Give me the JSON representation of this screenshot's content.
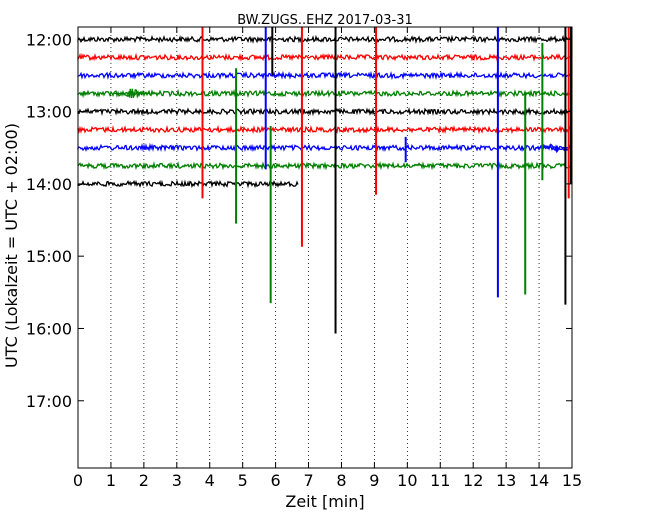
{
  "chart_data": {
    "type": "line",
    "title": "BW.ZUGS..EHZ 2017-03-31",
    "xlabel": "Zeit  [min]",
    "ylabel": "UTC (Lokalzeit = UTC + 02:00)",
    "xlim": [
      0,
      15
    ],
    "x_ticks": [
      "0",
      "1",
      "2",
      "3",
      "4",
      "5",
      "6",
      "7",
      "8",
      "9",
      "10",
      "11",
      "12",
      "13",
      "14",
      "15"
    ],
    "y_ticks": [
      "12:00",
      "13:00",
      "14:00",
      "15:00",
      "16:00",
      "17:00"
    ],
    "y_tick_hours": [
      12,
      13,
      14,
      15,
      16,
      17
    ],
    "ylim_hours": [
      11.83,
      17.93
    ],
    "grid": "vertical dotted",
    "trace_hours": [
      12.0,
      12.25,
      12.5,
      12.75,
      13.0,
      13.25,
      13.5,
      13.75,
      14.0
    ],
    "trace_colors": [
      "#000000",
      "#ff0000",
      "#0000ff",
      "#008000",
      "#000000",
      "#ff0000",
      "#0000ff",
      "#008000",
      "#000000"
    ],
    "trace_end_minutes": [
      15,
      15,
      15,
      15,
      15,
      15,
      15,
      15,
      6.7
    ],
    "spikes": [
      {
        "minute": 3.78,
        "color": "#ff0000",
        "top_hour": 11.83,
        "bottom_hour": 14.2
      },
      {
        "minute": 4.8,
        "color": "#008000",
        "top_hour": 12.4,
        "bottom_hour": 14.55
      },
      {
        "minute": 5.7,
        "color": "#0000ff",
        "top_hour": 11.83,
        "bottom_hour": 13.8
      },
      {
        "minute": 5.85,
        "color": "#008000",
        "top_hour": 13.2,
        "bottom_hour": 15.65
      },
      {
        "minute": 5.9,
        "color": "#000000",
        "top_hour": 11.83,
        "bottom_hour": 12.5
      },
      {
        "minute": 6.8,
        "color": "#ff0000",
        "top_hour": 11.83,
        "bottom_hour": 14.87
      },
      {
        "minute": 7.82,
        "color": "#000000",
        "top_hour": 11.83,
        "bottom_hour": 16.07
      },
      {
        "minute": 9.05,
        "color": "#ff0000",
        "top_hour": 11.83,
        "bottom_hour": 14.15
      },
      {
        "minute": 9.95,
        "color": "#0000ff",
        "top_hour": 13.35,
        "bottom_hour": 13.7
      },
      {
        "minute": 12.75,
        "color": "#0000ff",
        "top_hour": 11.83,
        "bottom_hour": 15.57
      },
      {
        "minute": 13.58,
        "color": "#008000",
        "top_hour": 12.75,
        "bottom_hour": 15.53
      },
      {
        "minute": 14.1,
        "color": "#008000",
        "top_hour": 12.05,
        "bottom_hour": 13.95
      },
      {
        "minute": 14.8,
        "color": "#000000",
        "top_hour": 11.83,
        "bottom_hour": 15.67
      },
      {
        "minute": 14.9,
        "color": "#ff0000",
        "top_hour": 11.83,
        "bottom_hour": 14.2
      },
      {
        "minute": 14.97,
        "color": "#000000",
        "top_hour": 11.83,
        "bottom_hour": 14.0
      }
    ],
    "bursts": [
      {
        "minute": 1.65,
        "hour": 12.75,
        "color": "#008000",
        "amplitude_hours": 0.1
      },
      {
        "minute": 14.45,
        "hour": 13.5,
        "color": "#0000ff",
        "amplitude_hours": 0.07
      }
    ]
  }
}
